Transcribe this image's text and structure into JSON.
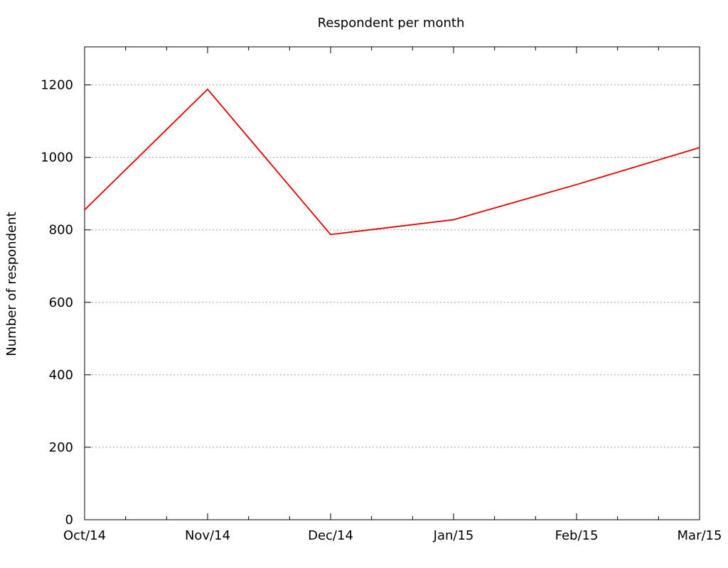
{
  "chart_data": {
    "type": "line",
    "title": "Respondent per month",
    "xlabel": "",
    "ylabel": "Number of respondent",
    "categories": [
      "Oct/14",
      "Nov/14",
      "Dec/14",
      "Jan/15",
      "Feb/15",
      "Mar/15"
    ],
    "series": [
      {
        "values": [
          855,
          1188,
          787,
          828,
          925,
          1027
        ],
        "color": "#e00000"
      }
    ],
    "ylim": [
      0,
      1200
    ],
    "yticks": [
      0,
      200,
      400,
      600,
      800,
      1000,
      1200
    ],
    "grid": true,
    "grid_style": "dotted"
  }
}
